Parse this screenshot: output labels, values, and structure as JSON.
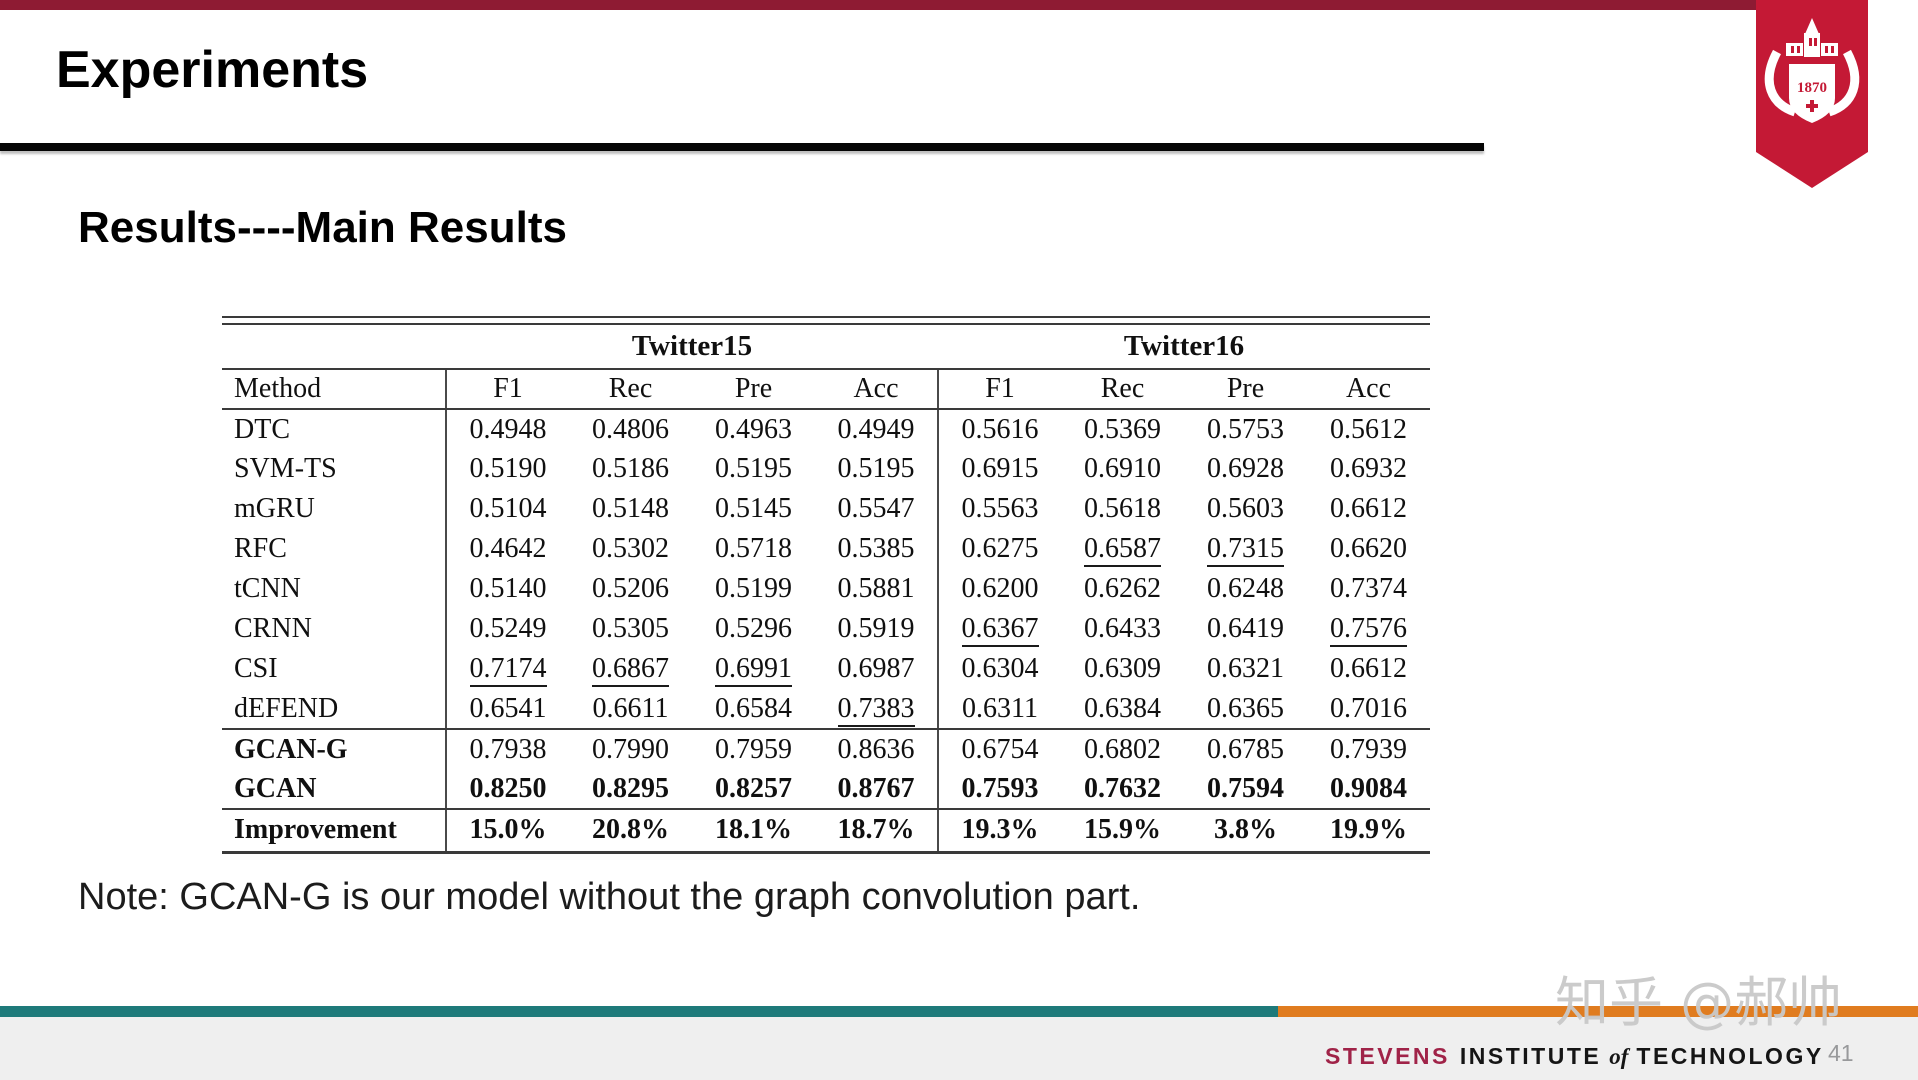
{
  "slide": {
    "title": "Experiments",
    "subtitle": "Results----Main Results",
    "note": "Note: GCAN-G is our model without the graph convolution part.",
    "page_number": "41",
    "watermark": "知乎 @郝帅",
    "logo_year": "1870",
    "footer_brand": {
      "stevens": "STEVENS",
      "institute": "INSTITUTE",
      "of": "of",
      "technology": "TECHNOLOGY"
    }
  },
  "colors": {
    "top_bar_maroon": "#8E1B33",
    "pennant_red": "#C41935",
    "title_rule_black": "#050505",
    "teal_bar": "#1E7A7A",
    "orange_bar": "#E07C1F",
    "footer_bg": "#EFEFEF",
    "stevens_brand_maroon": "#A02348",
    "watermark_gray": "#C9C9C9",
    "page_number_gray": "#98999B"
  },
  "chart_data": {
    "type": "table",
    "group_headers": [
      "Twitter15",
      "Twitter16"
    ],
    "columns": [
      "Method",
      "F1",
      "Rec",
      "Pre",
      "Acc",
      "F1",
      "Rec",
      "Pre",
      "Acc"
    ],
    "rows": [
      {
        "method": "DTC",
        "bold_method": false,
        "bold_values": false,
        "underline": [],
        "section_end": false,
        "values": [
          "0.4948",
          "0.4806",
          "0.4963",
          "0.4949",
          "0.5616",
          "0.5369",
          "0.5753",
          "0.5612"
        ]
      },
      {
        "method": "SVM-TS",
        "bold_method": false,
        "bold_values": false,
        "underline": [],
        "section_end": false,
        "values": [
          "0.5190",
          "0.5186",
          "0.5195",
          "0.5195",
          "0.6915",
          "0.6910",
          "0.6928",
          "0.6932"
        ]
      },
      {
        "method": "mGRU",
        "bold_method": false,
        "bold_values": false,
        "underline": [],
        "section_end": false,
        "values": [
          "0.5104",
          "0.5148",
          "0.5145",
          "0.5547",
          "0.5563",
          "0.5618",
          "0.5603",
          "0.6612"
        ]
      },
      {
        "method": "RFC",
        "bold_method": false,
        "bold_values": false,
        "underline": [
          5,
          6
        ],
        "section_end": false,
        "values": [
          "0.4642",
          "0.5302",
          "0.5718",
          "0.5385",
          "0.6275",
          "0.6587",
          "0.7315",
          "0.6620"
        ]
      },
      {
        "method": "tCNN",
        "bold_method": false,
        "bold_values": false,
        "underline": [],
        "section_end": false,
        "values": [
          "0.5140",
          "0.5206",
          "0.5199",
          "0.5881",
          "0.6200",
          "0.6262",
          "0.6248",
          "0.7374"
        ]
      },
      {
        "method": "CRNN",
        "bold_method": false,
        "bold_values": false,
        "underline": [
          4,
          7
        ],
        "section_end": false,
        "values": [
          "0.5249",
          "0.5305",
          "0.5296",
          "0.5919",
          "0.6367",
          "0.6433",
          "0.6419",
          "0.7576"
        ]
      },
      {
        "method": "CSI",
        "bold_method": false,
        "bold_values": false,
        "underline": [
          0,
          1,
          2
        ],
        "section_end": false,
        "values": [
          "0.7174",
          "0.6867",
          "0.6991",
          "0.6987",
          "0.6304",
          "0.6309",
          "0.6321",
          "0.6612"
        ]
      },
      {
        "method": "dEFEND",
        "bold_method": false,
        "bold_values": false,
        "underline": [
          3
        ],
        "section_end": true,
        "values": [
          "0.6541",
          "0.6611",
          "0.6584",
          "0.7383",
          "0.6311",
          "0.6384",
          "0.6365",
          "0.7016"
        ]
      },
      {
        "method": "GCAN-G",
        "bold_method": true,
        "bold_values": false,
        "underline": [],
        "section_end": false,
        "values": [
          "0.7938",
          "0.7990",
          "0.7959",
          "0.8636",
          "0.6754",
          "0.6802",
          "0.6785",
          "0.7939"
        ]
      },
      {
        "method": "GCAN",
        "bold_method": true,
        "bold_values": true,
        "underline": [],
        "section_end": true,
        "values": [
          "0.8250",
          "0.8295",
          "0.8257",
          "0.8767",
          "0.7593",
          "0.7632",
          "0.7594",
          "0.9084"
        ]
      },
      {
        "method": "Improvement",
        "bold_method": true,
        "bold_values": true,
        "underline": [],
        "section_end": false,
        "values": [
          "15.0%",
          "20.8%",
          "18.1%",
          "18.7%",
          "19.3%",
          "15.9%",
          "3.8%",
          "19.9%"
        ]
      }
    ]
  }
}
